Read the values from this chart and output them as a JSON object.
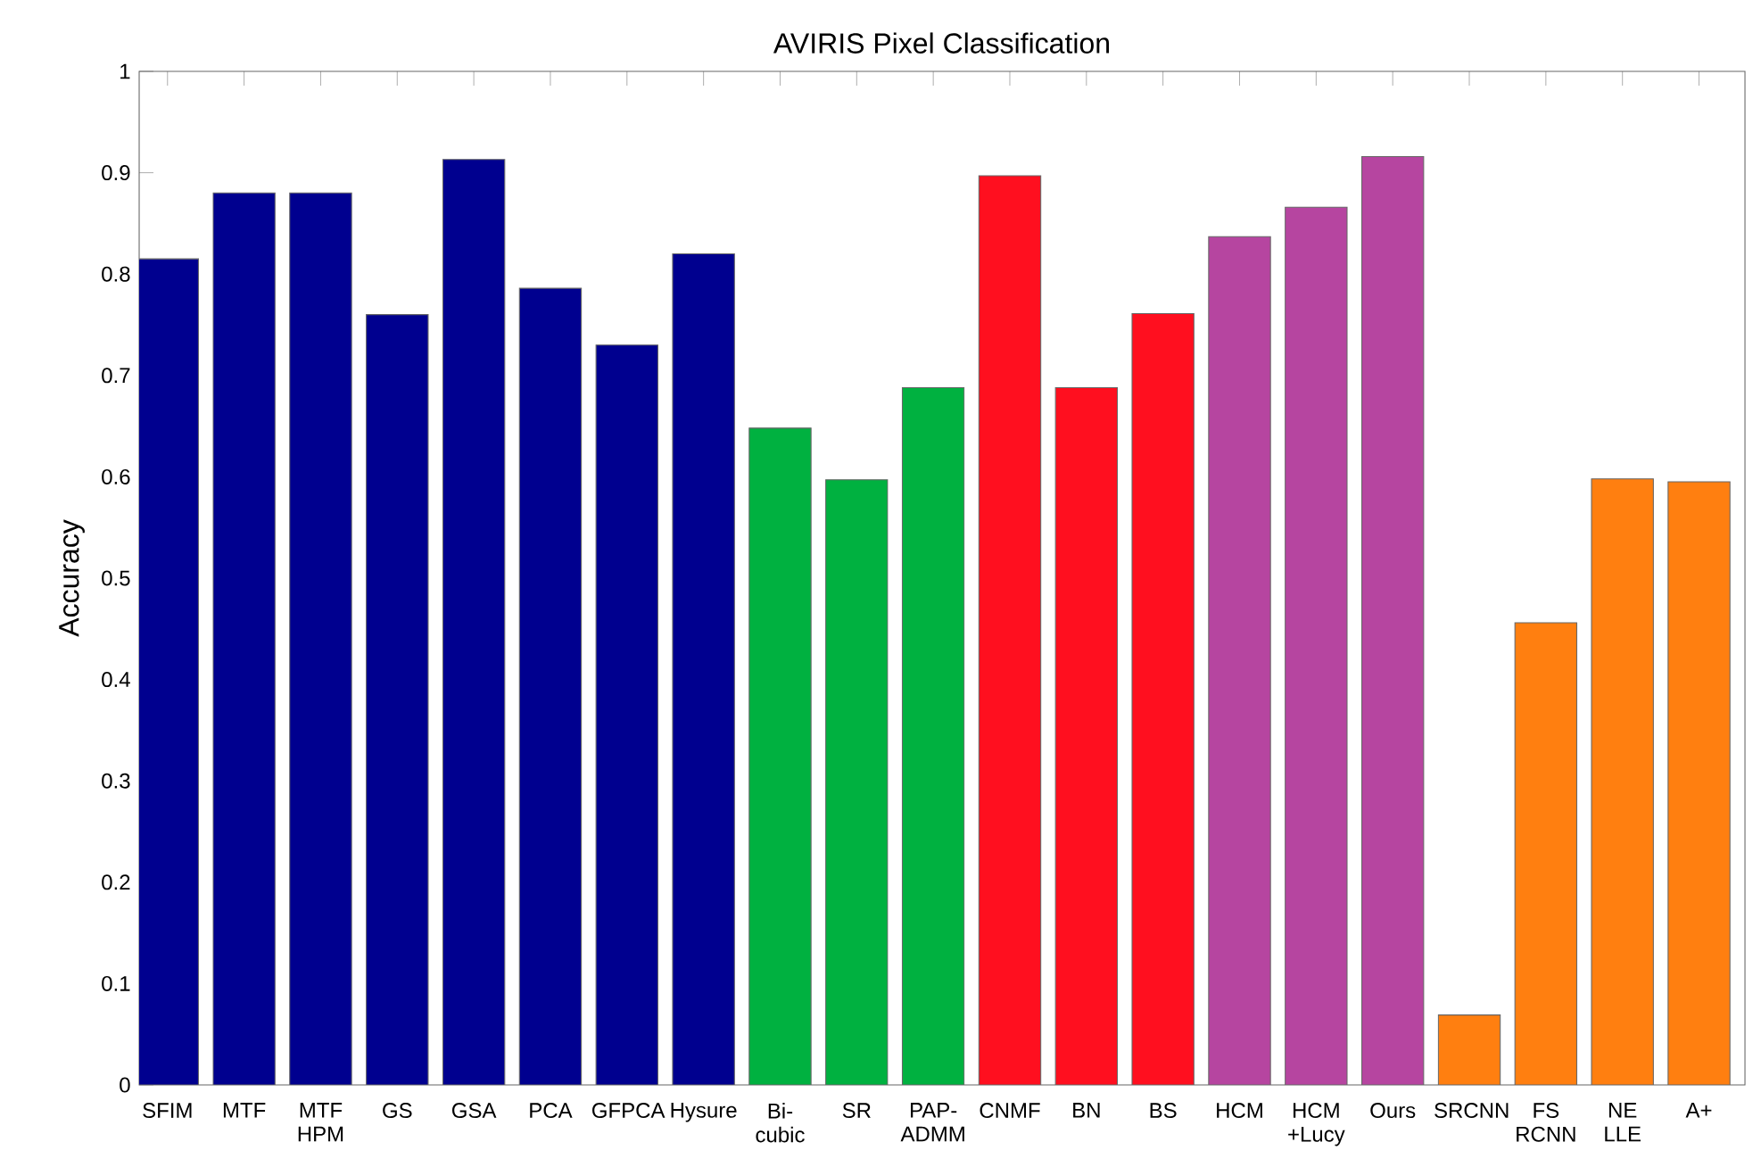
{
  "chart_data": {
    "type": "bar",
    "title": "AVIRIS Pixel Classification",
    "ylabel": "Accuracy",
    "categories": [
      "SFIM",
      "MTF",
      "MTF HPM",
      "GS",
      "GSA",
      "PCA",
      "GFPCA",
      "Hysure",
      "Bi-cubic",
      "SR",
      "PAP-ADMM",
      "CNMF",
      "BN",
      "BS",
      "HCM",
      "HCM +Lucy",
      "Ours",
      "SRCNN",
      "FS RCNN",
      "NE LLE",
      "A+"
    ],
    "values": [
      0.815,
      0.88,
      0.88,
      0.76,
      0.913,
      0.786,
      0.73,
      0.82,
      0.648,
      0.597,
      0.688,
      0.897,
      0.688,
      0.761,
      0.837,
      0.866,
      0.916,
      0.069,
      0.456,
      0.598,
      0.595
    ],
    "colors": [
      "#00008f",
      "#00008f",
      "#00008f",
      "#00008f",
      "#00008f",
      "#00008f",
      "#00008f",
      "#00008f",
      "#00b140",
      "#00b140",
      "#00b140",
      "#ff0f1f",
      "#ff0f1f",
      "#ff0f1f",
      "#b645a0",
      "#b645a0",
      "#b645a0",
      "#ff7f10",
      "#ff7f10",
      "#ff7f10",
      "#ff7f10"
    ],
    "ylim": [
      0,
      1
    ],
    "yticks": [
      0,
      0.1,
      0.2,
      0.3,
      0.4,
      0.5,
      0.6,
      0.7,
      0.8,
      0.9,
      1
    ],
    "grid": false
  }
}
